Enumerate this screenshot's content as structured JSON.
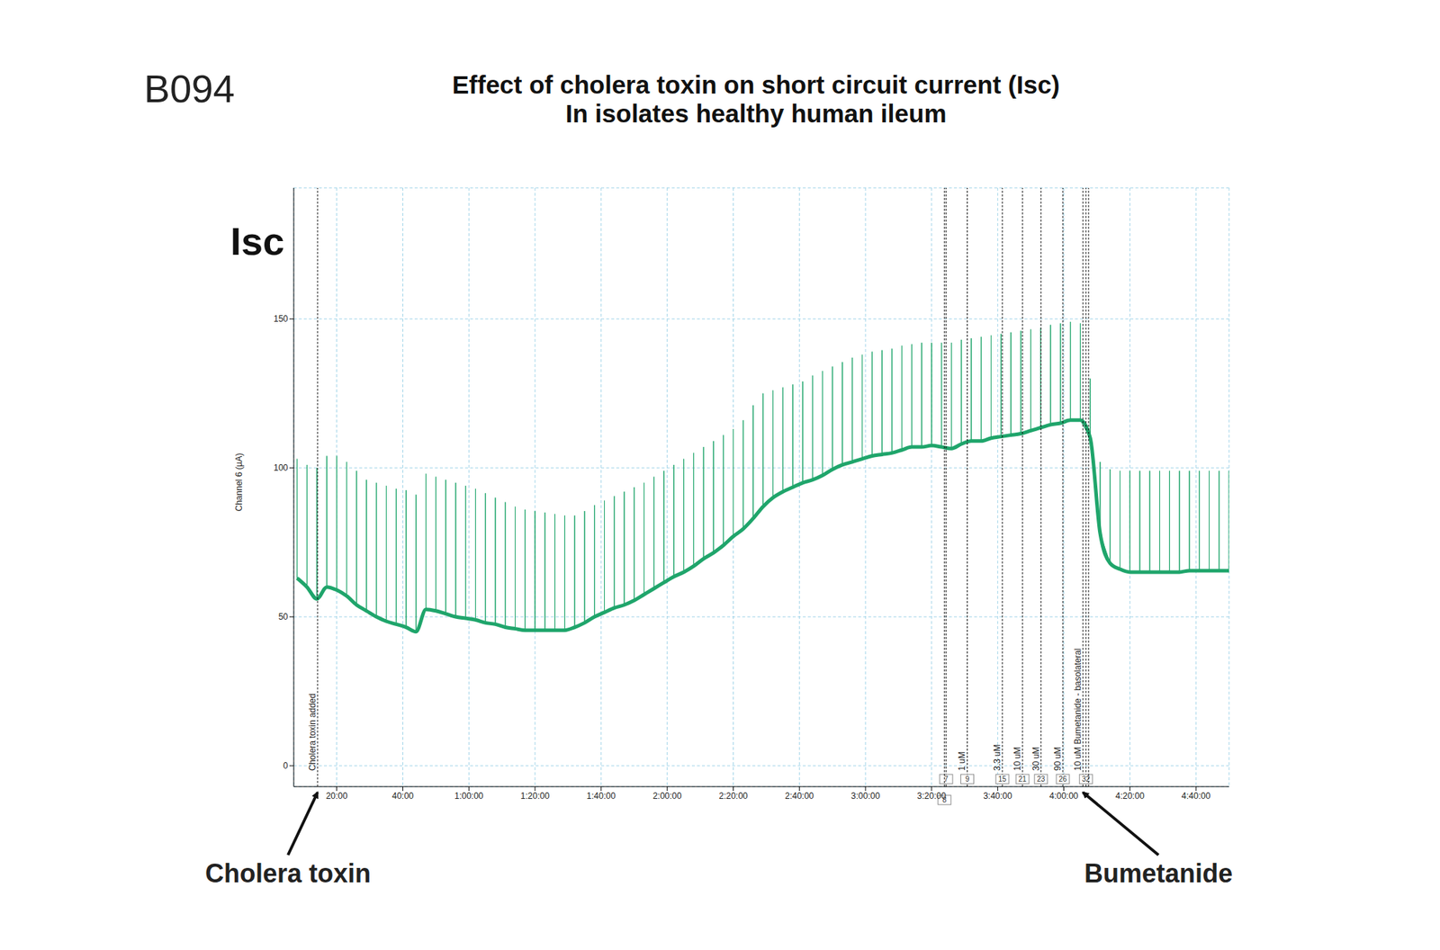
{
  "chart_data": {
    "type": "line",
    "figure_id": "B094",
    "title": "Effect of cholera toxin on short circuit current (Isc)",
    "subtitle": "In isolates healthy human ileum",
    "panel_label": "Isc",
    "y_label": "Channel 6 (µA)",
    "x": [
      8,
      11,
      14,
      17,
      20,
      23,
      26,
      29,
      32,
      35,
      38,
      41,
      44,
      47,
      50,
      53,
      56,
      59,
      62,
      65,
      68,
      71,
      74,
      77,
      80,
      83,
      86,
      89,
      92,
      95,
      98,
      101,
      104,
      107,
      110,
      113,
      116,
      119,
      122,
      125,
      128,
      131,
      134,
      137,
      140,
      143,
      146,
      149,
      152,
      155,
      158,
      161,
      164,
      167,
      170,
      173,
      176,
      179,
      182,
      185,
      188,
      191,
      194,
      197,
      200,
      203,
      206,
      209,
      212,
      215,
      218,
      221,
      224,
      227,
      230,
      233,
      236,
      239,
      242,
      245,
      248,
      251,
      254,
      257,
      260,
      263,
      266,
      269,
      272,
      275,
      278,
      281,
      284,
      287,
      290
    ],
    "series": [
      {
        "color": "#1fa56b",
        "values": [
          63,
          60,
          56,
          60,
          59,
          57,
          54,
          52,
          50,
          48.5,
          47.5,
          46.5,
          45,
          52.5,
          52,
          51,
          50,
          49.5,
          49,
          48,
          47.5,
          46.5,
          46,
          45.5,
          45.5,
          45.5,
          45.5,
          45.5,
          46.5,
          48,
          50,
          51.5,
          53,
          54,
          55.5,
          57.5,
          59.5,
          61.5,
          63.5,
          65,
          67,
          69.5,
          71.5,
          74,
          77,
          79.5,
          83,
          87,
          90,
          92,
          93.5,
          95,
          96,
          97.5,
          99.5,
          101,
          102,
          103,
          104,
          104.5,
          105,
          106,
          107,
          107,
          107.5,
          107,
          106.5,
          108,
          109,
          109,
          110,
          110.5,
          111,
          111.5,
          112.5,
          113.5,
          114.5,
          115,
          116,
          116,
          110,
          78,
          68,
          66,
          65,
          65,
          65,
          65,
          65,
          65,
          65.5,
          65.5,
          65.5,
          65.5,
          65.5
        ],
        "pulse_peaks": [
          103,
          101,
          100,
          104,
          104,
          102,
          99,
          96,
          95,
          94,
          93,
          92.5,
          91,
          98,
          97,
          96,
          95,
          94,
          93,
          91.5,
          90,
          88.5,
          87,
          86,
          85.5,
          85,
          84.5,
          84,
          84,
          85.5,
          87.5,
          89,
          90.5,
          92,
          93.5,
          95,
          97,
          99,
          101,
          103,
          105,
          107,
          109,
          111,
          113,
          116,
          121,
          125,
          126,
          127,
          128,
          129,
          131,
          132.5,
          134,
          135.5,
          137,
          138,
          139,
          139.5,
          140,
          141,
          141.5,
          142,
          142,
          142,
          142,
          143,
          143.5,
          144,
          144.5,
          145,
          145.5,
          146,
          146.5,
          147,
          148,
          148.5,
          149,
          148.5,
          130,
          102,
          99.5,
          99,
          99,
          99,
          99,
          99,
          99,
          99,
          99,
          99,
          99,
          99,
          99
        ]
      }
    ],
    "xlim": [
      7,
      290
    ],
    "xticks": [
      {
        "value": 20,
        "label": "20:00"
      },
      {
        "value": 40,
        "label": "40:00"
      },
      {
        "value": 60,
        "label": "1:00:00"
      },
      {
        "value": 80,
        "label": "1:20:00"
      },
      {
        "value": 100,
        "label": "1:40:00"
      },
      {
        "value": 120,
        "label": "2:00:00"
      },
      {
        "value": 140,
        "label": "2:20:00"
      },
      {
        "value": 160,
        "label": "2:40:00"
      },
      {
        "value": 180,
        "label": "3:00:00"
      },
      {
        "value": 200,
        "label": "3:20:00"
      },
      {
        "value": 220,
        "label": "3:40:00"
      },
      {
        "value": 240,
        "label": "4:00:00"
      },
      {
        "value": 260,
        "label": "4:20:00"
      },
      {
        "value": 280,
        "label": "4:40:00"
      }
    ],
    "ylim": [
      -7,
      194
    ],
    "yticks": [
      0,
      50,
      100,
      150
    ],
    "grid": true,
    "markers": [
      {
        "x": 14.2,
        "label": "Cholera toxin added"
      },
      {
        "x": 204.4,
        "box": 7
      },
      {
        "x": 203.9,
        "box": 8
      },
      {
        "x": 210.8,
        "label": "1 uM",
        "box": 9
      },
      {
        "x": 221.4,
        "label": "3.3 uM",
        "box": 15
      },
      {
        "x": 227.5,
        "label": "10 uM",
        "box": 21
      },
      {
        "x": 233.1,
        "label": "30 uM",
        "box": 23
      },
      {
        "x": 239.7,
        "label": "90 uM",
        "box": 26
      },
      {
        "x": 245.8,
        "label": "10 uM Bumetanide - basolateral"
      },
      {
        "x": 246.7,
        "box": 32
      },
      {
        "x": 247.5
      }
    ],
    "annotations": [
      {
        "text": "Cholera toxin",
        "x": 14.2
      },
      {
        "text": "Bumetanide",
        "x": 245.8
      }
    ]
  }
}
